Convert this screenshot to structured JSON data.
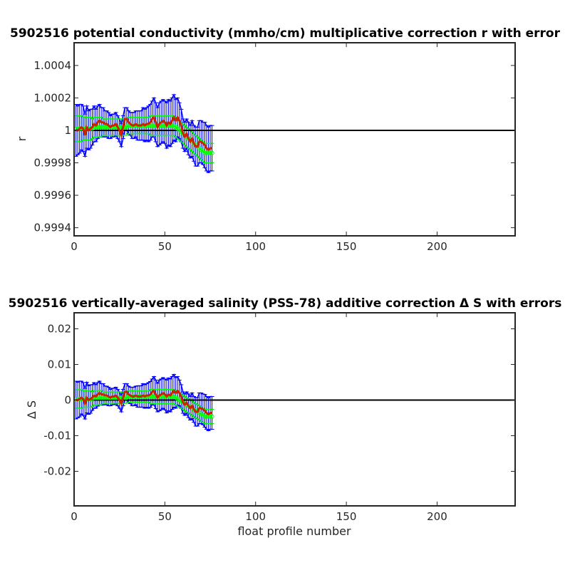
{
  "chart_data": [
    {
      "type": "line",
      "title": "5902516 potential conductivity (mmho/cm) multiplicative correction r with error",
      "xlabel": "",
      "ylabel": "r",
      "xlim": [
        0,
        243
      ],
      "ylim": [
        0.99935,
        1.00054
      ],
      "xticks": [
        0,
        50,
        100,
        150,
        200
      ],
      "xtick_labels": [
        "0",
        "50",
        "100",
        "150",
        "200"
      ],
      "yticks": [
        0.9994,
        0.9996,
        0.9998,
        1.0,
        1.0002,
        1.0004
      ],
      "ytick_labels": [
        "0.9994",
        "0.9996",
        "0.9998",
        "1",
        "1.0002",
        "1.0004"
      ],
      "grid": false,
      "reference_line": 1.0,
      "colors": {
        "mapped": "#ff0000",
        "mapped_error": "#0000ff",
        "fit": "#00ff00",
        "reference": "#000000",
        "final": "#cc2200"
      },
      "x": [
        1,
        2,
        3,
        4,
        5,
        6,
        7,
        8,
        9,
        10,
        11,
        12,
        13,
        14,
        15,
        16,
        17,
        18,
        19,
        20,
        21,
        22,
        23,
        24,
        25,
        26,
        27,
        28,
        29,
        30,
        31,
        32,
        33,
        34,
        35,
        36,
        37,
        38,
        39,
        40,
        41,
        42,
        43,
        44,
        45,
        46,
        47,
        48,
        49,
        50,
        51,
        52,
        53,
        54,
        55,
        56,
        57,
        58,
        59,
        60,
        61,
        62,
        63,
        64,
        65,
        66,
        67,
        68,
        69,
        70,
        71,
        72,
        73,
        74,
        75,
        76
      ],
      "series": [
        {
          "role": "mapped_correction",
          "values": [
            1.0,
            1.0,
            1.00001,
            1.00002,
            1.00001,
            0.99997,
            1.00002,
            1.0,
            1.00001,
            1.00002,
            1.00004,
            1.00003,
            1.00005,
            1.00006,
            1.00005,
            1.00005,
            1.00004,
            1.00004,
            1.00003,
            1.00002,
            1.00003,
            1.00003,
            1.00004,
            1.00002,
            1.0,
            0.99997,
            1.00002,
            1.00007,
            1.00007,
            1.00005,
            1.00004,
            1.00003,
            1.00003,
            1.00004,
            1.00003,
            1.00003,
            1.00003,
            1.00004,
            1.00003,
            1.00004,
            1.00004,
            1.00005,
            1.00007,
            1.00008,
            1.00005,
            1.00002,
            1.00004,
            1.00005,
            1.00006,
            1.00005,
            1.00003,
            1.00005,
            1.00004,
            1.00006,
            1.00008,
            1.00006,
            1.00008,
            1.00006,
            1.00003,
            0.99998,
            0.99996,
            0.99998,
            0.99995,
            0.99993,
            0.99995,
            0.99992,
            0.9999,
            0.9999,
            0.99993,
            0.99993,
            0.99992,
            0.99991,
            0.99989,
            0.99988,
            0.99989,
            0.99989
          ],
          "errors": [
            0.00016,
            0.00015,
            0.00015,
            0.00014,
            0.00014,
            0.00013,
            0.00013,
            0.00012,
            0.00012,
            0.00011,
            0.00011,
            0.0001,
            0.0001,
            0.0001,
            9e-05,
            9e-05,
            8e-05,
            8e-05,
            8e-05,
            7e-05,
            7e-05,
            7e-05,
            7e-05,
            7e-05,
            7e-05,
            7e-05,
            7e-05,
            7e-05,
            7e-05,
            7e-05,
            7e-05,
            8e-05,
            8e-05,
            8e-05,
            9e-05,
            9e-05,
            9e-05,
            0.0001,
            0.0001,
            0.0001,
            0.00011,
            0.00011,
            0.00011,
            0.00012,
            0.00012,
            0.00012,
            0.00013,
            0.00013,
            0.00013,
            0.00013,
            0.00014,
            0.00014,
            0.00014,
            0.00014,
            0.00014,
            0.00013,
            0.00012,
            0.00011,
            0.0001,
            9e-05,
            9e-05,
            9e-05,
            0.0001,
            0.0001,
            0.00011,
            0.00011,
            0.00012,
            0.00012,
            0.00013,
            0.00013,
            0.00013,
            0.00014,
            0.00014,
            0.00014,
            0.00014,
            0.00014
          ]
        },
        {
          "role": "fit",
          "values": [
            1.00001,
            1.00001,
            1.00001,
            1.00001,
            1.00001,
            1.00001,
            1.00001,
            1.00001,
            1.00001,
            1.00001,
            1.00002,
            1.00002,
            1.00002,
            1.00002,
            1.00002,
            1.00002,
            1.00002,
            1.00002,
            1.00002,
            1.00002,
            1.00002,
            1.00002,
            1.00002,
            1.00002,
            1.00002,
            1.00002,
            1.00002,
            1.00002,
            1.00002,
            1.00003,
            1.00003,
            1.00003,
            1.00003,
            1.00003,
            1.00003,
            1.00003,
            1.00003,
            1.00003,
            1.00003,
            1.00003,
            1.00003,
            1.00003,
            1.00003,
            1.00003,
            1.00003,
            1.00003,
            1.00003,
            1.00003,
            1.00003,
            1.00003,
            1.00003,
            1.00003,
            1.00003,
            1.00003,
            1.00003,
            1.00002,
            1.00001,
            1.0,
            0.99999,
            0.99998,
            0.99997,
            0.99996,
            0.99995,
            0.99994,
            0.99993,
            0.99992,
            0.99991,
            0.9999,
            0.99989,
            0.99988,
            0.99987,
            0.99986,
            0.99986,
            0.99986,
            0.99986,
            0.99986
          ],
          "errors": [
            8e-05,
            8e-05,
            8e-05,
            8e-05,
            7e-05,
            7e-05,
            7e-05,
            7e-05,
            7e-05,
            6e-05,
            6e-05,
            6e-05,
            6e-05,
            6e-05,
            6e-05,
            5e-05,
            5e-05,
            5e-05,
            5e-05,
            5e-05,
            5e-05,
            5e-05,
            5e-05,
            5e-05,
            5e-05,
            5e-05,
            5e-05,
            5e-05,
            5e-05,
            5e-05,
            5e-05,
            5e-05,
            5e-05,
            5e-05,
            5e-05,
            5e-05,
            5e-05,
            5e-05,
            5e-05,
            5e-05,
            5e-05,
            6e-05,
            6e-05,
            6e-05,
            6e-05,
            6e-05,
            6e-05,
            6e-05,
            6e-05,
            6e-05,
            6e-05,
            6e-05,
            6e-05,
            6e-05,
            6e-05,
            6e-05,
            6e-05,
            6e-05,
            6e-05,
            6e-05,
            6e-05,
            6e-05,
            6e-05,
            6e-05,
            6e-05,
            6e-05,
            6e-05,
            6e-05,
            6e-05,
            6e-05,
            6e-05,
            6e-05,
            6e-05,
            6e-05,
            6e-05,
            6e-05
          ]
        }
      ]
    },
    {
      "type": "line",
      "title": "5902516 vertically-averaged salinity (PSS-78) additive correction Δ S with errors",
      "xlabel": "float profile number",
      "ylabel": "Δ S",
      "xlim": [
        0,
        243
      ],
      "ylim": [
        -0.0297,
        0.0245
      ],
      "xticks": [
        0,
        50,
        100,
        150,
        200
      ],
      "xtick_labels": [
        "0",
        "50",
        "100",
        "150",
        "200"
      ],
      "yticks": [
        -0.02,
        -0.01,
        0.0,
        0.01,
        0.02
      ],
      "ytick_labels": [
        "-0.02",
        "-0.01",
        "0",
        "0.01",
        "0.02"
      ],
      "grid": false,
      "reference_line": 0.0,
      "colors": {
        "mapped": "#ff0000",
        "mapped_error": "#0000ff",
        "fit": "#00ff00",
        "reference": "#000000",
        "final": "#cc2200"
      },
      "x": [
        1,
        2,
        3,
        4,
        5,
        6,
        7,
        8,
        9,
        10,
        11,
        12,
        13,
        14,
        15,
        16,
        17,
        18,
        19,
        20,
        21,
        22,
        23,
        24,
        25,
        26,
        27,
        28,
        29,
        30,
        31,
        32,
        33,
        34,
        35,
        36,
        37,
        38,
        39,
        40,
        41,
        42,
        43,
        44,
        45,
        46,
        47,
        48,
        49,
        50,
        51,
        52,
        53,
        54,
        55,
        56,
        57,
        58,
        59,
        60,
        61,
        62,
        63,
        64,
        65,
        66,
        67,
        68,
        69,
        70,
        71,
        72,
        73,
        74,
        75,
        76
      ],
      "series": [
        {
          "role": "mapped_correction",
          "values": [
            0.0,
            0.0,
            0.0003,
            0.0007,
            0.0003,
            -0.001,
            0.0007,
            0.0,
            0.0003,
            0.0007,
            0.0013,
            0.001,
            0.0016,
            0.002,
            0.0016,
            0.0016,
            0.0013,
            0.0013,
            0.001,
            0.0007,
            0.001,
            0.001,
            0.0013,
            0.0007,
            0.0,
            -0.001,
            0.0007,
            0.0023,
            0.0023,
            0.0016,
            0.0013,
            0.001,
            0.001,
            0.0013,
            0.001,
            0.001,
            0.001,
            0.0013,
            0.001,
            0.0013,
            0.0013,
            0.0016,
            0.0023,
            0.0026,
            0.0016,
            0.0007,
            0.0013,
            0.0016,
            0.002,
            0.0016,
            0.001,
            0.0016,
            0.0013,
            0.002,
            0.0026,
            0.002,
            0.0026,
            0.002,
            0.001,
            -0.0007,
            -0.0013,
            -0.0007,
            -0.0016,
            -0.0023,
            -0.0016,
            -0.0026,
            -0.0033,
            -0.0033,
            -0.0023,
            -0.0023,
            -0.0026,
            -0.003,
            -0.0036,
            -0.004,
            -0.0036,
            -0.0036
          ],
          "errors": [
            0.0053,
            0.005,
            0.005,
            0.0046,
            0.0046,
            0.0043,
            0.0043,
            0.004,
            0.004,
            0.0036,
            0.0036,
            0.0033,
            0.0033,
            0.0033,
            0.003,
            0.003,
            0.0026,
            0.0026,
            0.0026,
            0.0023,
            0.0023,
            0.0023,
            0.0023,
            0.0023,
            0.0023,
            0.0023,
            0.0023,
            0.0023,
            0.0023,
            0.0023,
            0.0023,
            0.0026,
            0.0026,
            0.0026,
            0.003,
            0.003,
            0.003,
            0.0033,
            0.0033,
            0.0033,
            0.0036,
            0.0036,
            0.0036,
            0.004,
            0.004,
            0.004,
            0.0043,
            0.0043,
            0.0043,
            0.0043,
            0.0046,
            0.0046,
            0.0046,
            0.0046,
            0.0046,
            0.0043,
            0.004,
            0.0036,
            0.0033,
            0.003,
            0.003,
            0.003,
            0.0033,
            0.0033,
            0.0036,
            0.0036,
            0.004,
            0.004,
            0.0043,
            0.0043,
            0.0043,
            0.0046,
            0.0046,
            0.0046,
            0.0046,
            0.0046
          ]
        },
        {
          "role": "fit",
          "values": [
            0.0003,
            0.0003,
            0.0003,
            0.0003,
            0.0003,
            0.0003,
            0.0003,
            0.0003,
            0.0003,
            0.0003,
            0.0007,
            0.0007,
            0.0007,
            0.0007,
            0.0007,
            0.0007,
            0.0007,
            0.0007,
            0.0007,
            0.0007,
            0.0007,
            0.0007,
            0.0007,
            0.0007,
            0.0007,
            0.0007,
            0.0007,
            0.0007,
            0.0007,
            0.001,
            0.001,
            0.001,
            0.001,
            0.001,
            0.001,
            0.001,
            0.001,
            0.001,
            0.001,
            0.001,
            0.001,
            0.001,
            0.001,
            0.001,
            0.001,
            0.001,
            0.001,
            0.001,
            0.001,
            0.001,
            0.001,
            0.001,
            0.001,
            0.001,
            0.001,
            0.0007,
            0.0003,
            0.0,
            -0.0003,
            -0.0007,
            -0.001,
            -0.0013,
            -0.0016,
            -0.002,
            -0.0023,
            -0.0026,
            -0.003,
            -0.0033,
            -0.0036,
            -0.004,
            -0.0043,
            -0.0046,
            -0.0046,
            -0.0046,
            -0.0046,
            -0.0046
          ],
          "errors": [
            0.0026,
            0.0026,
            0.0026,
            0.0026,
            0.0023,
            0.0023,
            0.0023,
            0.0023,
            0.0023,
            0.002,
            0.002,
            0.002,
            0.002,
            0.002,
            0.002,
            0.0016,
            0.0016,
            0.0016,
            0.0016,
            0.0016,
            0.0016,
            0.0016,
            0.0016,
            0.0016,
            0.0016,
            0.0016,
            0.0016,
            0.0016,
            0.0016,
            0.0016,
            0.0016,
            0.0016,
            0.0016,
            0.0016,
            0.0016,
            0.0016,
            0.0016,
            0.0016,
            0.0016,
            0.0016,
            0.0016,
            0.002,
            0.002,
            0.002,
            0.002,
            0.002,
            0.002,
            0.002,
            0.002,
            0.002,
            0.002,
            0.002,
            0.002,
            0.002,
            0.002,
            0.002,
            0.002,
            0.002,
            0.002,
            0.002,
            0.002,
            0.002,
            0.002,
            0.002,
            0.002,
            0.002,
            0.002,
            0.002,
            0.002,
            0.002,
            0.002,
            0.002,
            0.002,
            0.002,
            0.002,
            0.002
          ]
        }
      ]
    }
  ]
}
